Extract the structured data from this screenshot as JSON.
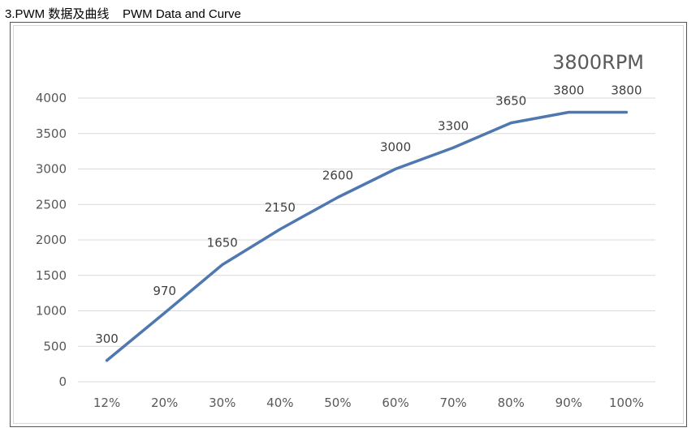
{
  "document": {
    "heading": "3.PWM 数据及曲线    PWM Data and Curve"
  },
  "chart_data": {
    "type": "line",
    "title": "3800RPM",
    "xlabel": "",
    "ylabel": "",
    "categories": [
      "12%",
      "20%",
      "30%",
      "40%",
      "50%",
      "60%",
      "70%",
      "80%",
      "90%",
      "100%"
    ],
    "series": [
      {
        "values": [
          300,
          970,
          1650,
          2150,
          2600,
          3000,
          3300,
          3650,
          3800,
          3800
        ],
        "data_labels": [
          "300",
          "970",
          "1650",
          "2150",
          "2600",
          "3000",
          "3300",
          "3650",
          "3800",
          "3800"
        ],
        "color": "#4f77b0"
      }
    ],
    "ylim": [
      0,
      4000
    ],
    "yticks": [
      0,
      500,
      1000,
      1500,
      2000,
      2500,
      3000,
      3500,
      4000
    ],
    "grid": true,
    "legend": "none",
    "colors": {
      "gridline": "#d9d9d9",
      "tick_text": "#595959"
    }
  }
}
